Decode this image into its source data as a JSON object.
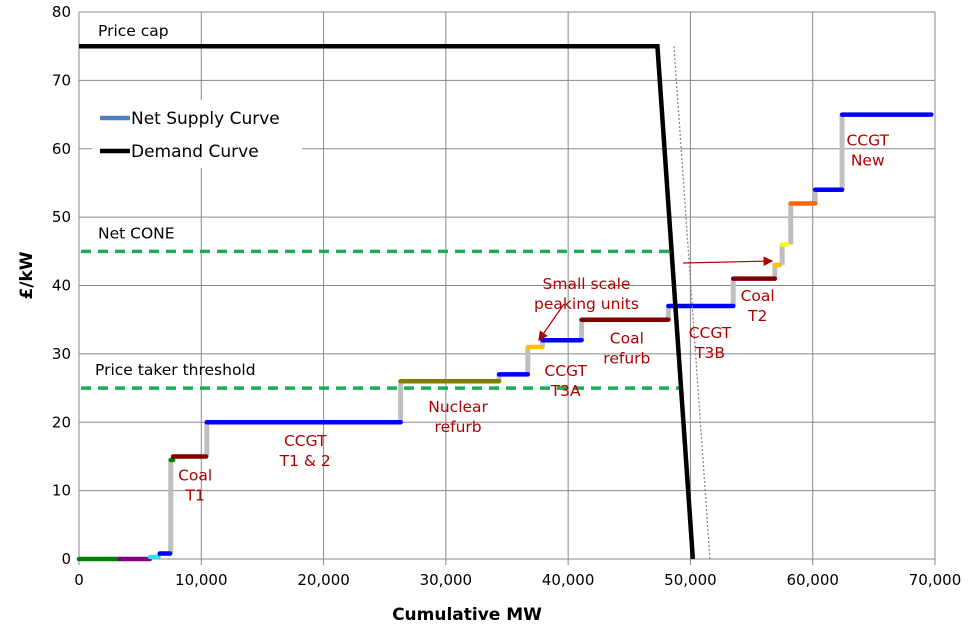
{
  "chart_data": {
    "type": "line",
    "xlabel": "Cumulative MW",
    "ylabel": "£/kW",
    "xlim": [
      0,
      70000
    ],
    "ylim": [
      0,
      80
    ],
    "xticks": [
      "0",
      "10,000",
      "20,000",
      "30,000",
      "40,000",
      "50,000",
      "60,000",
      "70,000"
    ],
    "yticks": [
      "0",
      "10",
      "20",
      "30",
      "40",
      "50",
      "60",
      "70",
      "80"
    ],
    "grid": true,
    "legend": {
      "placement": "top-left",
      "entries": [
        {
          "name": "Net Supply Curve",
          "color": "#4f81bd"
        },
        {
          "name": "Demand Curve",
          "color": "#000000"
        }
      ]
    },
    "supply_steps": [
      {
        "x0": 0,
        "x1": 3350,
        "y": 0,
        "color": "#008000"
      },
      {
        "x0": 3350,
        "x1": 5800,
        "y": 0,
        "color": "#800080"
      },
      {
        "x0": 5800,
        "x1": 6500,
        "y": 0.3,
        "color": "#33ddee"
      },
      {
        "x0": 6600,
        "x1": 7450,
        "y": 0.8,
        "color": "#0000ff"
      },
      {
        "x0": 7500,
        "x1": 7700,
        "y": 14.5,
        "color": "#008000"
      },
      {
        "x0": 7700,
        "x1": 10400,
        "y": 15,
        "color": "#800000"
      },
      {
        "x0": 10450,
        "x1": 26300,
        "y": 20,
        "color": "#0000ff"
      },
      {
        "x0": 26300,
        "x1": 34350,
        "y": 26,
        "color": "#808000"
      },
      {
        "x0": 34350,
        "x1": 36700,
        "y": 27,
        "color": "#0000ff"
      },
      {
        "x0": 36700,
        "x1": 37900,
        "y": 31,
        "color": "#ffc000"
      },
      {
        "x0": 37900,
        "x1": 41100,
        "y": 32,
        "color": "#0000ff"
      },
      {
        "x0": 41100,
        "x1": 48200,
        "y": 35,
        "color": "#800000"
      },
      {
        "x0": 48200,
        "x1": 53500,
        "y": 37,
        "color": "#0000ff"
      },
      {
        "x0": 53500,
        "x1": 56900,
        "y": 41,
        "color": "#800000"
      },
      {
        "x0": 56900,
        "x1": 57300,
        "y": 43,
        "color": "#ffc000"
      },
      {
        "x0": 57500,
        "x1": 57900,
        "y": 46,
        "color": "#ffff00"
      },
      {
        "x0": 58200,
        "x1": 60200,
        "y": 52,
        "color": "#ff6600"
      },
      {
        "x0": 60200,
        "x1": 62400,
        "y": 54,
        "color": "#0000ff"
      },
      {
        "x0": 62400,
        "x1": 69700,
        "y": 65,
        "color": "#0000ff"
      }
    ],
    "demand_curve": [
      [
        0,
        75
      ],
      [
        47300,
        75
      ],
      [
        50200,
        0
      ]
    ],
    "dotted_line": [
      [
        48650,
        75
      ],
      [
        51600,
        0
      ]
    ],
    "thresholds": [
      {
        "label": "Net CONE",
        "y": 45,
        "x1": 48600,
        "color": "#1faa55"
      },
      {
        "label": "Price taker threshold",
        "y": 25,
        "x1": 49400,
        "color": "#1faa55"
      }
    ],
    "price_cap_label": "Price cap",
    "annotations": [
      {
        "text": [
          "Coal",
          "T1"
        ],
        "x": 9500,
        "y": 11.5
      },
      {
        "text": [
          "CCGT",
          "T1 & 2"
        ],
        "x": 18500,
        "y": 16.5
      },
      {
        "text": [
          "Nuclear",
          "refurb"
        ],
        "x": 31000,
        "y": 21.5
      },
      {
        "text": [
          "CCGT",
          "T3A"
        ],
        "x": 39800,
        "y": 26.8
      },
      {
        "text": [
          "Coal",
          "refurb"
        ],
        "x": 44800,
        "y": 31.5
      },
      {
        "text": [
          "CCGT",
          "T3B"
        ],
        "x": 51600,
        "y": 32.3
      },
      {
        "text": [
          "Coal",
          "T2"
        ],
        "x": 55500,
        "y": 37.7
      },
      {
        "text": [
          "CCGT",
          "New"
        ],
        "x": 64500,
        "y": 60.5
      },
      {
        "text": [
          "Small scale",
          "peaking units"
        ],
        "x": 41500,
        "y": 39.5
      }
    ]
  }
}
